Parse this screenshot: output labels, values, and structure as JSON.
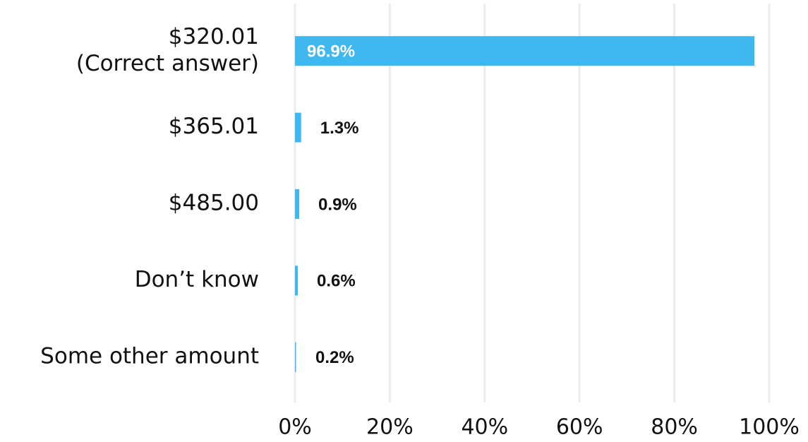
{
  "chart_data": {
    "type": "bar",
    "orientation": "horizontal",
    "categories": [
      "$320.01\n(Correct answer)",
      "$365.01",
      "$485.00",
      "Don’t know",
      "Some other amount"
    ],
    "values": [
      96.9,
      1.3,
      0.9,
      0.6,
      0.2
    ],
    "value_labels": [
      "96.9%",
      "1.3%",
      "0.9%",
      "0.6%",
      "0.2%"
    ],
    "color": "#3fb8f0",
    "xlim": [
      0,
      100
    ],
    "xticks": [
      {
        "value": 0,
        "label": "0%"
      },
      {
        "value": 20,
        "label": "20%"
      },
      {
        "value": 40,
        "label": "40%"
      },
      {
        "value": 60,
        "label": "60%"
      },
      {
        "value": 80,
        "label": "80%"
      },
      {
        "value": 100,
        "label": "100%"
      }
    ],
    "grid": true
  }
}
